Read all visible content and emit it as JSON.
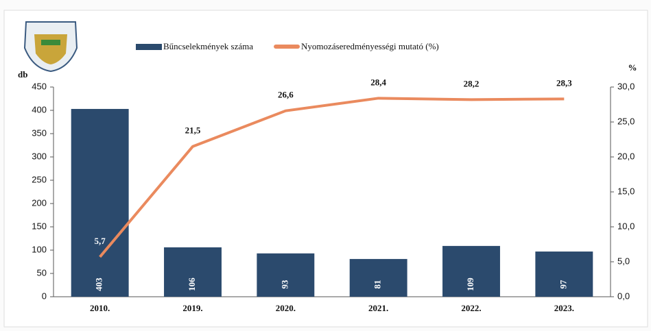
{
  "chart_data": {
    "type": "bar-line",
    "categories": [
      "2010.",
      "2019.",
      "2020.",
      "2021.",
      "2022.",
      "2023."
    ],
    "y_label": "db",
    "y2_label": "%",
    "ylim": [
      0,
      450
    ],
    "yticks": [
      0,
      50,
      100,
      150,
      200,
      250,
      300,
      350,
      400,
      450
    ],
    "y2lim": [
      0,
      30
    ],
    "y2ticks": [
      {
        "value": 0,
        "label": "0,0"
      },
      {
        "value": 5,
        "label": "5,0"
      },
      {
        "value": 10,
        "label": "10,0"
      },
      {
        "value": 15,
        "label": "15,0"
      },
      {
        "value": 20,
        "label": "20,0"
      },
      {
        "value": 25,
        "label": "25,0"
      },
      {
        "value": 30,
        "label": "30,0"
      }
    ],
    "series": [
      {
        "name": "Bűncselekmények száma",
        "type": "bar",
        "color": "#2b4a6d",
        "values": [
          403,
          106,
          93,
          81,
          109,
          97
        ]
      },
      {
        "name": "Nyomozáseredményességi mutató (%)",
        "type": "line",
        "axis": "y2",
        "color": "#ea8a5e",
        "values": [
          5.7,
          21.5,
          26.6,
          28.4,
          28.2,
          28.3
        ],
        "value_labels": [
          "5,7",
          "21,5",
          "26,6",
          "28,4",
          "28,2",
          "28,3"
        ]
      }
    ]
  }
}
